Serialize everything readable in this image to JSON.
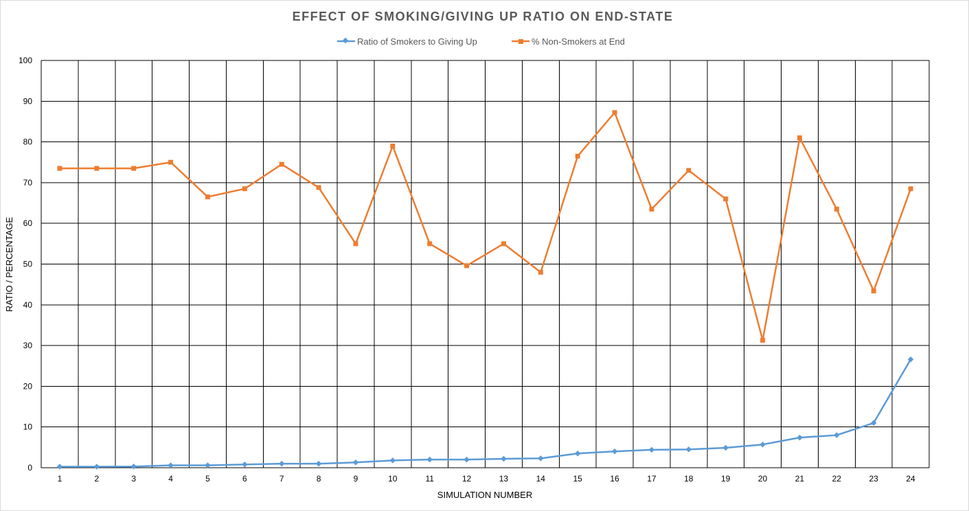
{
  "chart_data": {
    "type": "line",
    "title": "EFFECT OF SMOKING/GIVING UP RATIO ON END-STATE",
    "xlabel": "SIMULATION NUMBER",
    "ylabel": "RATIO / PERCENTAGE",
    "categories": [
      "1",
      "2",
      "3",
      "4",
      "5",
      "6",
      "7",
      "8",
      "9",
      "10",
      "11",
      "12",
      "13",
      "14",
      "15",
      "16",
      "17",
      "18",
      "19",
      "20",
      "21",
      "22",
      "23",
      "24"
    ],
    "ylim": [
      0,
      100
    ],
    "yticks": [
      "0",
      "10",
      "20",
      "30",
      "40",
      "50",
      "60",
      "70",
      "80",
      "90",
      "100"
    ],
    "grid": true,
    "legend_position": "top",
    "series": [
      {
        "name": "Ratio of Smokers to Giving Up",
        "color": "#5b9bd5",
        "marker": "diamond",
        "values": [
          0.25,
          0.25,
          0.3,
          0.6,
          0.6,
          0.8,
          1.0,
          1.0,
          1.3,
          1.8,
          2.0,
          2.0,
          2.2,
          2.3,
          3.5,
          4.0,
          4.4,
          4.5,
          4.9,
          5.7,
          7.4,
          8.0,
          11.0,
          26.6
        ]
      },
      {
        "name": "% Non-Smokers at End",
        "color": "#ed7d31",
        "marker": "square",
        "values": [
          73.5,
          73.5,
          73.5,
          75.0,
          66.5,
          68.5,
          74.5,
          68.8,
          55.0,
          79.0,
          55.0,
          49.6,
          55.0,
          48.0,
          76.5,
          87.2,
          63.5,
          73.0,
          66.0,
          31.3,
          81.0,
          63.5,
          43.4,
          68.5
        ]
      }
    ]
  }
}
